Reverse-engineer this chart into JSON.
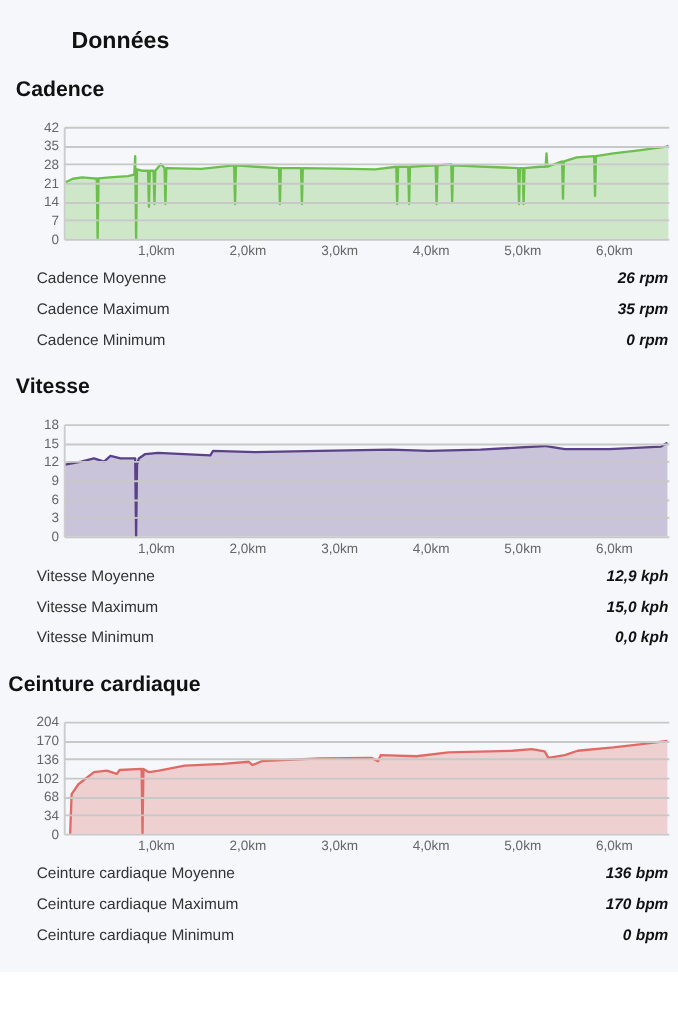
{
  "chart_data": [
    {
      "type": "other",
      "title": "Données"
    },
    {
      "type": "area",
      "title": "Cadence",
      "xlim": [
        0,
        6.6
      ],
      "ylim": [
        0,
        42
      ],
      "yticks": [
        0,
        7,
        14,
        21,
        28,
        35,
        42
      ],
      "grid": "y",
      "xticks": [
        {
          "value": 1,
          "label": "1,0km"
        },
        {
          "value": 2,
          "label": "2,0km"
        },
        {
          "value": 3,
          "label": "3,0km"
        },
        {
          "value": 4,
          "label": "4,0km"
        },
        {
          "value": 5,
          "label": "5,0km"
        },
        {
          "value": 6,
          "label": "6,0km"
        }
      ],
      "x": [
        0.02,
        0.1,
        0.2,
        0.33,
        0.36,
        0.37,
        0.38,
        0.5,
        0.7,
        0.77,
        0.78,
        0.79,
        0.8,
        0.85,
        0.92,
        0.93,
        0.94,
        0.98,
        0.99,
        1.0,
        1.06,
        1.1,
        1.11,
        1.12,
        1.5,
        1.86,
        1.87,
        1.88,
        2.1,
        2.35,
        2.36,
        2.37,
        2.59,
        2.6,
        2.61,
        3.0,
        3.4,
        3.63,
        3.64,
        3.65,
        3.76,
        3.77,
        3.78,
        4.06,
        4.07,
        4.08,
        4.23,
        4.24,
        4.25,
        4.6,
        4.96,
        4.97,
        4.98,
        5.01,
        5.02,
        5.03,
        5.2,
        5.26,
        5.27,
        5.28,
        5.44,
        5.45,
        5.46,
        5.6,
        5.79,
        5.8,
        5.81,
        6.0,
        6.3,
        6.58,
        6.6
      ],
      "series": [
        {
          "color": "#6cbf4c",
          "values": [
            21.2,
            22.5,
            23,
            22.6,
            22.6,
            0,
            22.6,
            23,
            23.5,
            24,
            31,
            0,
            26,
            25.5,
            25.5,
            12,
            25.5,
            25.5,
            13,
            25.5,
            28,
            26.5,
            13,
            26.5,
            26.2,
            27.5,
            13,
            27.5,
            27,
            26.5,
            13,
            26.5,
            26.5,
            13,
            26.5,
            26.3,
            26,
            27,
            13,
            27,
            27,
            13,
            27,
            27.5,
            13,
            27.5,
            28,
            14,
            27.5,
            27,
            26.5,
            13,
            26.5,
            26.5,
            13,
            26.5,
            27,
            27,
            32,
            27,
            29,
            15,
            29,
            30.5,
            31,
            16,
            31,
            32,
            33.2,
            34.5,
            35
          ]
        }
      ],
      "annotations": [
        "Cadence Moyenne",
        "26 rpm",
        "Cadence Maximum",
        "35 rpm",
        "Cadence Minimum",
        "0 rpm"
      ]
    },
    {
      "type": "area",
      "title": "Vitesse",
      "xlim": [
        0,
        6.6
      ],
      "ylim": [
        0,
        18
      ],
      "yticks": [
        0,
        3,
        6,
        9,
        12,
        15,
        18
      ],
      "grid": "y",
      "xticks": [
        {
          "value": 1,
          "label": "1,0km"
        },
        {
          "value": 2,
          "label": "2,0km"
        },
        {
          "value": 3,
          "label": "3,0km"
        },
        {
          "value": 4,
          "label": "4,0km"
        },
        {
          "value": 5,
          "label": "5,0km"
        },
        {
          "value": 6,
          "label": "6,0km"
        }
      ],
      "x": [
        0.015,
        0.19,
        0.33,
        0.44,
        0.51,
        0.62,
        0.76,
        0.78,
        0.79,
        0.8,
        0.82,
        0.89,
        1.03,
        1.6,
        1.63,
        2.09,
        2.79,
        3.57,
        3.99,
        4.55,
        5.25,
        5.47,
        5.96,
        6.52,
        6.59
      ],
      "series": [
        {
          "color": "#5a4188",
          "values": [
            11.5,
            12,
            12.5,
            12,
            12.9,
            12.5,
            12.5,
            12.5,
            0,
            11.5,
            12.5,
            13.2,
            13.4,
            13,
            13.7,
            13.5,
            13.7,
            13.9,
            13.7,
            13.9,
            14.5,
            14,
            14,
            14.4,
            15
          ]
        }
      ],
      "annotations": [
        "Vitesse Moyenne",
        "12,9 kph",
        "Vitesse Maximum",
        "15,0 kph",
        "Vitesse Minimum",
        "0,0 kph"
      ]
    },
    {
      "type": "area",
      "title": "Ceinture cardiaque",
      "xlim": [
        0,
        6.6
      ],
      "ylim": [
        0,
        204
      ],
      "yticks": [
        0,
        34,
        68,
        102,
        136,
        170,
        204
      ],
      "grid": "y",
      "xticks": [
        {
          "value": 1,
          "label": "1,0km"
        },
        {
          "value": 2,
          "label": "2,0km"
        },
        {
          "value": 3,
          "label": "3,0km"
        },
        {
          "value": 4,
          "label": "4,0km"
        },
        {
          "value": 5,
          "label": "5,0km"
        },
        {
          "value": 6,
          "label": "6,0km"
        }
      ],
      "x": [
        0.07,
        0.086,
        0.16,
        0.33,
        0.47,
        0.58,
        0.61,
        0.85,
        0.86,
        0.87,
        0.93,
        1.04,
        1.32,
        1.74,
        2.02,
        2.06,
        2.16,
        2.79,
        3.36,
        3.43,
        3.46,
        3.85,
        4.2,
        4.9,
        5.11,
        5.25,
        5.29,
        5.47,
        5.61,
        6.0,
        6.31,
        6.59
      ],
      "series": [
        {
          "color": "#e06b66",
          "values": [
            0,
            72,
            90,
            112,
            115,
            109,
            116,
            118,
            0,
            118,
            112,
            115,
            124,
            127,
            131,
            125,
            132,
            137,
            138,
            132,
            143,
            141,
            148,
            151,
            154,
            150,
            138,
            143,
            151,
            157,
            163,
            169
          ]
        }
      ],
      "annotations": [
        "Ceinture cardiaque Moyenne",
        "136 bpm",
        "Ceinture cardiaque Maximum",
        "170 bpm",
        "Ceinture cardiaque Minimum",
        "0 bpm"
      ]
    }
  ]
}
